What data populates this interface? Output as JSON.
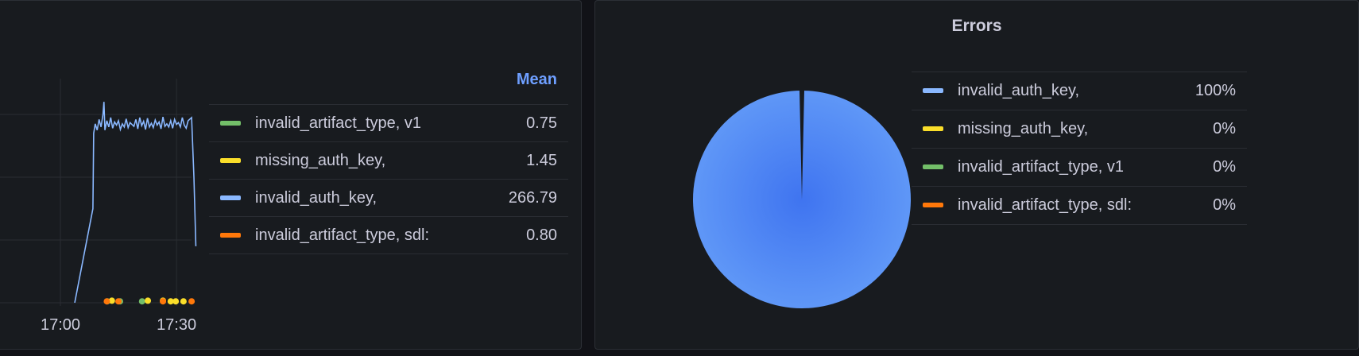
{
  "chart_data": [
    {
      "type": "line",
      "xlabel": "",
      "ylabel": "",
      "x_ticks": [
        "17:00",
        "17:30"
      ],
      "grid": true,
      "legend_placement": "right",
      "legend_header": "Mean",
      "series": [
        {
          "name": "invalid_artifact_type, v1",
          "color": "#73bf69",
          "mean": "0.75",
          "points": [
            [
              "17:12:06",
              1
            ],
            [
              "17:15:24",
              1
            ],
            [
              "17:21:06",
              1
            ]
          ]
        },
        {
          "name": "missing_auth_key,",
          "color": "#fade2a",
          "mean": "1.45",
          "points": [
            [
              "17:13:18",
              2
            ],
            [
              "17:22:36",
              2
            ],
            [
              "17:26:30",
              2
            ],
            [
              "17:28:30",
              1
            ],
            [
              "17:29:48",
              1
            ],
            [
              "17:31:48",
              1
            ]
          ]
        },
        {
          "name": "invalid_auth_key,",
          "color": "#8ab8ff",
          "mean": "266.79",
          "points": [
            [
              "17:03:42",
              0
            ],
            [
              "17:08:24",
              150
            ],
            [
              "17:08:36",
              270
            ],
            [
              "17:09:00",
              285
            ],
            [
              "17:09:30",
              275
            ],
            [
              "17:10:00",
              292
            ],
            [
              "17:10:30",
              280
            ],
            [
              "17:11:00",
              300
            ],
            [
              "17:11:15",
              320
            ],
            [
              "17:11:30",
              275
            ],
            [
              "17:12:00",
              290
            ],
            [
              "17:12:30",
              280
            ],
            [
              "17:13:00",
              295
            ],
            [
              "17:13:30",
              278
            ],
            [
              "17:14:00",
              288
            ],
            [
              "17:14:30",
              283
            ],
            [
              "17:15:00",
              290
            ],
            [
              "17:15:30",
              276
            ],
            [
              "17:16:00",
              285
            ],
            [
              "17:16:30",
              280
            ],
            [
              "17:17:00",
              293
            ],
            [
              "17:17:30",
              279
            ],
            [
              "17:18:00",
              287
            ],
            [
              "17:18:30",
              284
            ],
            [
              "17:19:00",
              281
            ],
            [
              "17:19:30",
              292
            ],
            [
              "17:20:00",
              277
            ],
            [
              "17:20:30",
              295
            ],
            [
              "17:21:00",
              282
            ],
            [
              "17:21:30",
              289
            ],
            [
              "17:22:00",
              276
            ],
            [
              "17:22:30",
              294
            ],
            [
              "17:23:00",
              280
            ],
            [
              "17:23:30",
              286
            ],
            [
              "17:24:00",
              279
            ],
            [
              "17:24:30",
              291
            ],
            [
              "17:25:00",
              283
            ],
            [
              "17:25:30",
              288
            ],
            [
              "17:26:00",
              277
            ],
            [
              "17:26:30",
              296
            ],
            [
              "17:27:00",
              281
            ],
            [
              "17:27:30",
              285
            ],
            [
              "17:28:00",
              280
            ],
            [
              "17:28:30",
              290
            ],
            [
              "17:29:00",
              278
            ],
            [
              "17:29:30",
              292
            ],
            [
              "17:30:00",
              284
            ],
            [
              "17:30:30",
              287
            ],
            [
              "17:31:00",
              280
            ],
            [
              "17:31:30",
              295
            ],
            [
              "17:32:00",
              283
            ],
            [
              "17:32:30",
              278
            ],
            [
              "17:33:00",
              290
            ],
            [
              "17:33:54",
              295
            ],
            [
              "17:34:30",
              200
            ],
            [
              "17:35:00",
              90
            ]
          ]
        },
        {
          "name": "invalid_artifact_type, sdl:",
          "color": "#ff780a",
          "mean": "0.80",
          "points": [
            [
              "17:12:00",
              1
            ],
            [
              "17:15:00",
              1
            ],
            [
              "17:26:30",
              1
            ],
            [
              "17:33:54",
              1
            ]
          ]
        }
      ]
    },
    {
      "type": "pie",
      "title": "Errors",
      "legend_placement": "right",
      "slices": [
        {
          "name": "invalid_auth_key,",
          "value": 100,
          "label": "100%",
          "color": "#5794f2"
        },
        {
          "name": "missing_auth_key,",
          "value": 0,
          "label": "0%",
          "color": "#fade2a"
        },
        {
          "name": "invalid_artifact_type, v1",
          "value": 0,
          "label": "0%",
          "color": "#73bf69"
        },
        {
          "name": "invalid_artifact_type, sdl:",
          "value": 0,
          "label": "0%",
          "color": "#ff780a"
        }
      ],
      "legend_colors": [
        "#8ab8ff",
        "#fade2a",
        "#73bf69",
        "#ff780a"
      ]
    }
  ]
}
